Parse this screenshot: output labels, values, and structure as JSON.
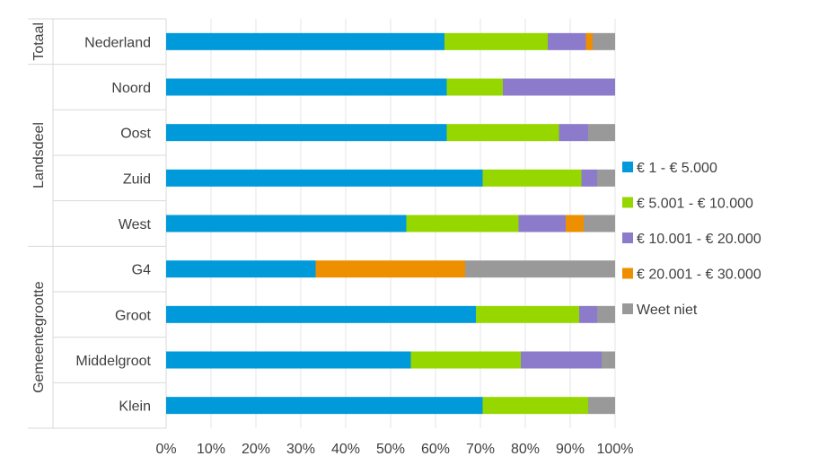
{
  "chart_data": {
    "type": "bar",
    "orientation": "horizontal",
    "stacked": "percent",
    "categories": [
      "Nederland",
      "Noord",
      "Oost",
      "Zuid",
      "West",
      "G4",
      "Groot",
      "Middelgroot",
      "Klein"
    ],
    "groups": [
      {
        "label": "Totaal",
        "categories": [
          "Nederland"
        ]
      },
      {
        "label": "Landsdeel",
        "categories": [
          "Noord",
          "Oost",
          "Zuid",
          "West"
        ]
      },
      {
        "label": "Gemeentegrootte",
        "categories": [
          "G4",
          "Groot",
          "Middelgroot",
          "Klein"
        ]
      }
    ],
    "series": [
      {
        "name": "€ 1 - € 5.000",
        "color": "#009ADA",
        "values": [
          62,
          62.5,
          62.5,
          70.5,
          53.5,
          33.3,
          69,
          54.5,
          70.5
        ]
      },
      {
        "name": "€ 5.001 - € 10.000",
        "color": "#97D700",
        "values": [
          23,
          12.5,
          25,
          22,
          25,
          0,
          23,
          24.5,
          23.5
        ]
      },
      {
        "name": "€ 10.001 - € 20.000",
        "color": "#8C7BCB",
        "values": [
          8.5,
          25,
          6.5,
          3.5,
          10.5,
          0,
          4,
          18,
          0
        ]
      },
      {
        "name": "€ 20.001 - € 30.000",
        "color": "#EE8F00",
        "values": [
          1.5,
          0,
          0,
          0,
          4,
          33.3,
          0,
          0,
          0
        ]
      },
      {
        "name": "Weet niet",
        "color": "#999999",
        "values": [
          5,
          0,
          6,
          4,
          7,
          33.4,
          4,
          3,
          6
        ]
      }
    ],
    "xlim": [
      0,
      100
    ],
    "xticks": [
      "0%",
      "10%",
      "20%",
      "30%",
      "40%",
      "50%",
      "60%",
      "70%",
      "80%",
      "90%",
      "100%"
    ],
    "xlabel": "",
    "ylabel": "",
    "title": "",
    "grid": true,
    "legend_position": "right"
  }
}
